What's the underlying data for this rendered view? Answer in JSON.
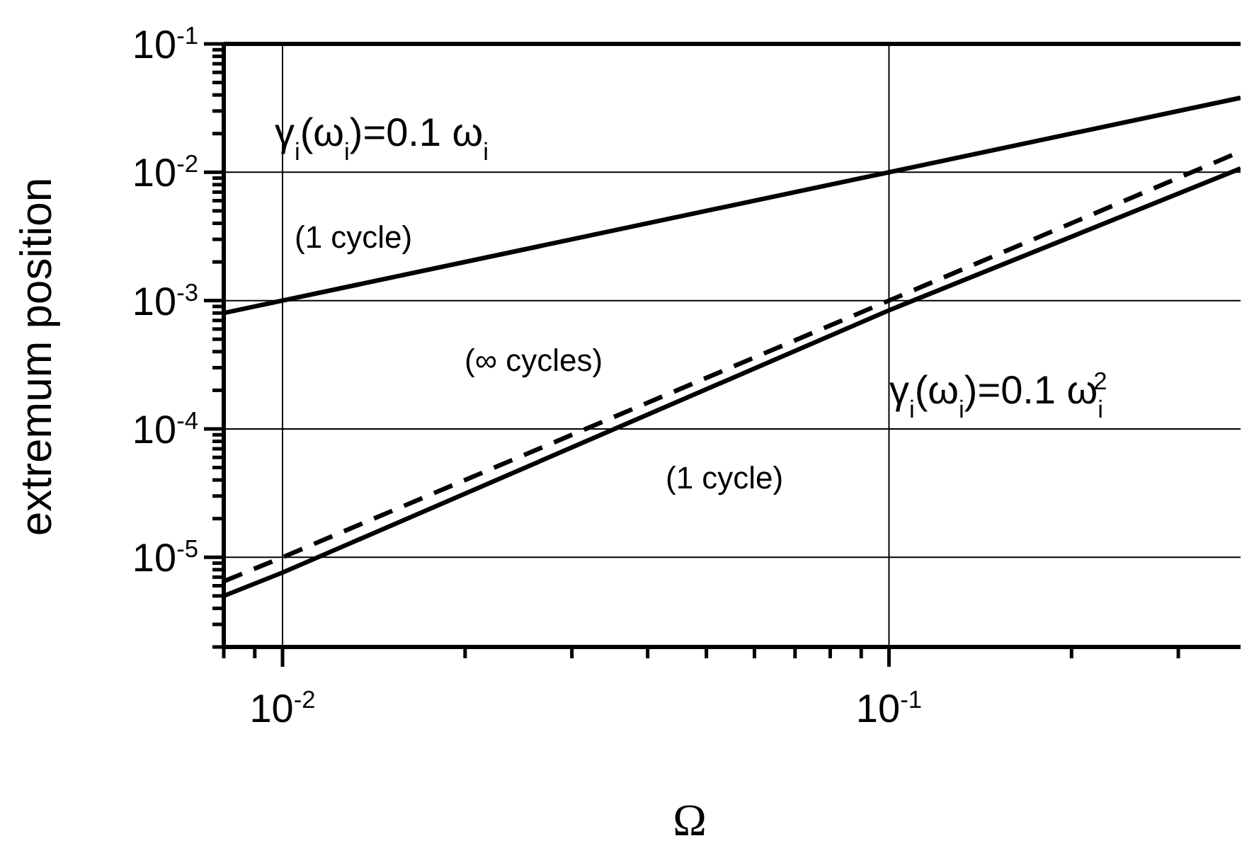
{
  "chart_data": {
    "type": "line",
    "xlabel": "Ω",
    "ylabel": "extremum position",
    "log": "xy",
    "grid": true,
    "xlim": [
      0.008,
      0.38
    ],
    "xticks": [
      {
        "value": 0.008,
        "label": null
      },
      {
        "value": 0.009,
        "label": null
      },
      {
        "value": 0.01,
        "label": "10$^{-2}$"
      },
      {
        "value": 0.02,
        "label": null
      },
      {
        "value": 0.03,
        "label": null
      },
      {
        "value": 0.04,
        "label": null
      },
      {
        "value": 0.05,
        "label": null
      },
      {
        "value": 0.06,
        "label": null
      },
      {
        "value": 0.07,
        "label": null
      },
      {
        "value": 0.08,
        "label": null
      },
      {
        "value": 0.09,
        "label": null
      },
      {
        "value": 0.1,
        "label": "10$^{-1}$"
      },
      {
        "value": 0.2,
        "label": null
      },
      {
        "value": 0.3,
        "label": null
      }
    ],
    "ylim": [
      2e-06,
      0.1
    ],
    "yticks": [
      {
        "value": 2e-06,
        "label": null
      },
      {
        "value": 3e-06,
        "label": null
      },
      {
        "value": 4e-06,
        "label": null
      },
      {
        "value": 5e-06,
        "label": null
      },
      {
        "value": 6e-06,
        "label": null
      },
      {
        "value": 7e-06,
        "label": null
      },
      {
        "value": 8e-06,
        "label": null
      },
      {
        "value": 9e-06,
        "label": null
      },
      {
        "value": 1e-05,
        "label": "10$^{-5}$"
      },
      {
        "value": 2e-05,
        "label": null
      },
      {
        "value": 3e-05,
        "label": null
      },
      {
        "value": 4e-05,
        "label": null
      },
      {
        "value": 5e-05,
        "label": null
      },
      {
        "value": 6e-05,
        "label": null
      },
      {
        "value": 7e-05,
        "label": null
      },
      {
        "value": 8e-05,
        "label": null
      },
      {
        "value": 9e-05,
        "label": null
      },
      {
        "value": 0.0001,
        "label": "10$^{-4}$"
      },
      {
        "value": 0.0002,
        "label": null
      },
      {
        "value": 0.0003,
        "label": null
      },
      {
        "value": 0.0004,
        "label": null
      },
      {
        "value": 0.0005,
        "label": null
      },
      {
        "value": 0.0006,
        "label": null
      },
      {
        "value": 0.0007,
        "label": null
      },
      {
        "value": 0.0008,
        "label": null
      },
      {
        "value": 0.0009,
        "label": null
      },
      {
        "value": 0.001,
        "label": "10$^{-3}$"
      },
      {
        "value": 0.002,
        "label": null
      },
      {
        "value": 0.003,
        "label": null
      },
      {
        "value": 0.004,
        "label": null
      },
      {
        "value": 0.005,
        "label": null
      },
      {
        "value": 0.006,
        "label": null
      },
      {
        "value": 0.007,
        "label": null
      },
      {
        "value": 0.008,
        "label": null
      },
      {
        "value": 0.009,
        "label": null
      },
      {
        "value": 0.01,
        "label": "10$^{-2}$"
      },
      {
        "value": 0.02,
        "label": null
      },
      {
        "value": 0.03,
        "label": null
      },
      {
        "value": 0.04,
        "label": null
      },
      {
        "value": 0.05,
        "label": null
      },
      {
        "value": 0.06,
        "label": null
      },
      {
        "value": 0.07,
        "label": null
      },
      {
        "value": 0.08,
        "label": null
      },
      {
        "value": 0.09,
        "label": null
      },
      {
        "value": 0.1,
        "label": "10$^{-1}$"
      }
    ],
    "series": [
      {
        "color": "#000000",
        "line_style": "solid",
        "x": [
          0.008,
          0.01,
          0.1,
          0.38
        ],
        "values": [
          0.0008,
          0.001,
          0.01,
          0.038
        ]
      },
      {
        "color": "#000000",
        "line_style": "dashed",
        "x": [
          0.008,
          0.01,
          0.1,
          0.38
        ],
        "values": [
          6.5e-06,
          1e-05,
          0.001,
          0.0145
        ]
      },
      {
        "color": "#000000",
        "line_style": "solid",
        "x": [
          0.008,
          0.01,
          0.1,
          0.38
        ],
        "values": [
          5e-06,
          7.6e-06,
          0.00084,
          0.0107
        ]
      }
    ],
    "annotations": [
      "γ$_{i}$(ω$_{i}$)=0.1 ω$_{i}$",
      "(1 cycle)",
      "(∞ cycles)",
      "γ$_{i}$(ω$_{i}$)=0.1 ω$_{i}$$^{2}$",
      "(1 cycle)"
    ]
  }
}
